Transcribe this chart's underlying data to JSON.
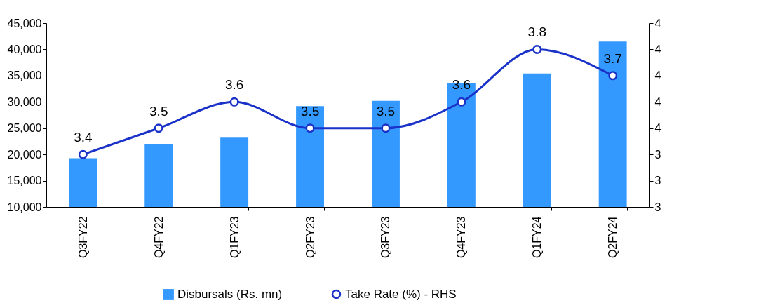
{
  "chart_data": {
    "type": "bar",
    "categories": [
      "Q3FY22",
      "Q4FY22",
      "Q1FY23",
      "Q2FY23",
      "Q3FY23",
      "Q4FY23",
      "Q1FY24",
      "Q2FY24"
    ],
    "series": [
      {
        "name": "Disbursals (Rs. mn)",
        "color": "#3399ff",
        "values": [
          19300,
          21900,
          23200,
          29200,
          30200,
          33600,
          35400,
          41500
        ]
      },
      {
        "name": "Take Rate (%) - RHS",
        "type": "line",
        "axis": "y2",
        "color": "#1a32c8",
        "values": [
          3.4,
          3.5,
          3.6,
          3.5,
          3.5,
          3.6,
          3.8,
          3.7
        ],
        "value_labels": [
          "3.4",
          "3.5",
          "3.6",
          "3.5",
          "3.5",
          "3.6",
          "3.8",
          "3.7"
        ]
      }
    ],
    "ylim": [
      10000,
      45000
    ],
    "yticks": [
      {
        "value": 10000,
        "label": "10,000"
      },
      {
        "value": 15000,
        "label": "15,000"
      },
      {
        "value": 20000,
        "label": "20,000"
      },
      {
        "value": 25000,
        "label": "25,000"
      },
      {
        "value": 30000,
        "label": "30,000"
      },
      {
        "value": 35000,
        "label": "35,000"
      },
      {
        "value": 40000,
        "label": "40,000"
      },
      {
        "value": 45000,
        "label": "45,000"
      }
    ],
    "y2lim": [
      3.2,
      3.9
    ],
    "y2ticks": [
      {
        "value": 3.2,
        "label": "3"
      },
      {
        "value": 3.3,
        "label": "3"
      },
      {
        "value": 3.4,
        "label": "3"
      },
      {
        "value": 3.5,
        "label": "4"
      },
      {
        "value": 3.6,
        "label": "4"
      },
      {
        "value": 3.7,
        "label": "4"
      },
      {
        "value": 3.8,
        "label": "4"
      },
      {
        "value": 3.9,
        "label": "4"
      }
    ],
    "marker": "circle",
    "grid": false,
    "legend": "bottom"
  }
}
